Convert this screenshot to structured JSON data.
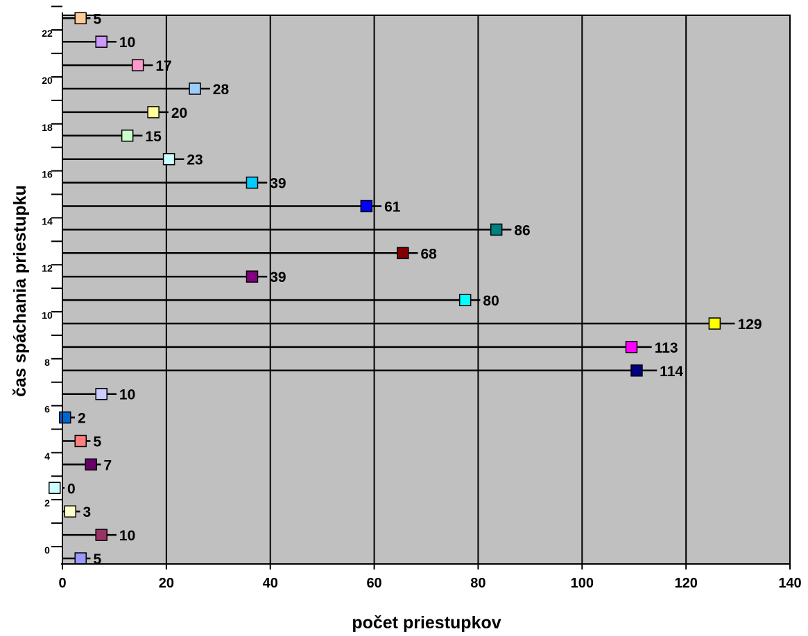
{
  "chart_data": {
    "type": "bar",
    "orientation": "horizontal",
    "style": "lollipop",
    "title": "",
    "xlabel": "počet priestupkov",
    "ylabel": "čas spáchania priestupku",
    "xlim": [
      0,
      140
    ],
    "x_ticks": [
      0,
      20,
      40,
      60,
      80,
      100,
      120,
      140
    ],
    "y_tick_labels": [
      "0",
      "2",
      "4",
      "6",
      "8",
      "10",
      "12",
      "14",
      "16",
      "18",
      "20",
      "22"
    ],
    "grid": "vertical",
    "plot_background": "#c0c0c0",
    "categories": [
      "0",
      "1",
      "2",
      "3",
      "4",
      "5",
      "6",
      "7",
      "8",
      "9",
      "10",
      "11",
      "12",
      "13",
      "14",
      "15",
      "16",
      "17",
      "18",
      "19",
      "20",
      "21",
      "22",
      "23"
    ],
    "values": [
      5,
      10,
      3,
      0,
      7,
      5,
      2,
      10,
      114,
      113,
      129,
      80,
      39,
      68,
      86,
      61,
      39,
      23,
      15,
      20,
      28,
      17,
      10,
      5
    ],
    "marker_positions": [
      3.5,
      7.5,
      1.5,
      -1.5,
      5.5,
      3.5,
      0.5,
      7.5,
      110.5,
      109.5,
      125.5,
      77.5,
      36.5,
      65.5,
      83.5,
      58.5,
      36.5,
      20.5,
      12.5,
      17.5,
      25.5,
      14.5,
      7.5,
      3.5
    ],
    "marker_colors": [
      "#9999ff",
      "#993366",
      "#ffffcc",
      "#ccffff",
      "#660066",
      "#ff8080",
      "#0066cc",
      "#ccccff",
      "#000080",
      "#ff00ff",
      "#ffff00",
      "#00ffff",
      "#800080",
      "#800000",
      "#008080",
      "#0000ff",
      "#00ccff",
      "#ccffff",
      "#ccffcc",
      "#ffff99",
      "#99ccff",
      "#ff99cc",
      "#cc99ff",
      "#ffcc99"
    ]
  }
}
